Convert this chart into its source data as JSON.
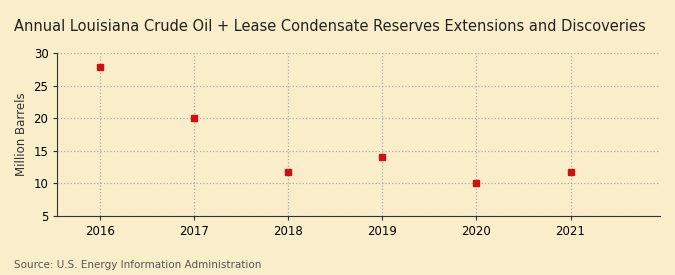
{
  "title": "Annual Louisiana Crude Oil + Lease Condensate Reserves Extensions and Discoveries",
  "ylabel": "Million Barrels",
  "source": "Source: U.S. Energy Information Administration",
  "x": [
    2016,
    2017,
    2018,
    2019,
    2020,
    2021
  ],
  "y": [
    27.8,
    20.0,
    11.8,
    14.0,
    10.0,
    11.8
  ],
  "marker_color": "#cc1111",
  "marker": "s",
  "marker_size": 4,
  "background_color": "#faeeca",
  "plot_bg_color": "#faeeca",
  "grid_color": "#aaaaaa",
  "spine_color": "#333333",
  "ylim": [
    5,
    30
  ],
  "yticks": [
    5,
    10,
    15,
    20,
    25,
    30
  ],
  "xlim": [
    2015.55,
    2021.95
  ],
  "xticks": [
    2016,
    2017,
    2018,
    2019,
    2020,
    2021
  ],
  "title_fontsize": 10.5,
  "axis_fontsize": 8.5,
  "ylabel_fontsize": 8.5,
  "source_fontsize": 7.5
}
